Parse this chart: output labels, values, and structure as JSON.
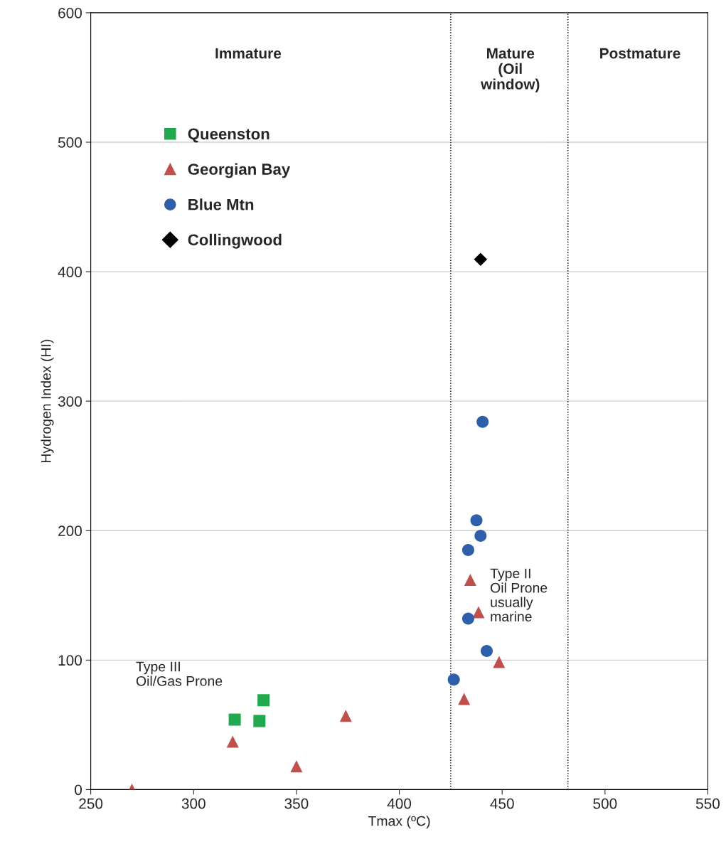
{
  "chart_data": {
    "type": "scatter",
    "xlabel": "Tmax (ºC)",
    "ylabel": "Hydrogen Index (HI)",
    "xlim": [
      250,
      550
    ],
    "ylim": [
      0,
      600
    ],
    "xticks": [
      250,
      300,
      350,
      400,
      450,
      500,
      550
    ],
    "yticks": [
      0,
      100,
      200,
      300,
      400,
      500,
      600
    ],
    "grid": "y",
    "legend": "top left",
    "series": [
      {
        "name": "Queenston",
        "color": "#22a84f",
        "marker": "square",
        "x": [
          320,
          332,
          334
        ],
        "values": [
          54,
          53,
          69
        ]
      },
      {
        "name": "Georgian Bay",
        "color": "#c0504d",
        "marker": "triangle",
        "x": [
          270,
          319,
          350,
          374,
          431.5,
          434.5,
          438.5,
          448.5
        ],
        "values": [
          0,
          37,
          18,
          57,
          70,
          162,
          137,
          98.5
        ]
      },
      {
        "name": "Blue Mtn",
        "color": "#2f5fa8",
        "marker": "circle",
        "x": [
          440.5,
          437.5,
          439.5,
          433.5,
          433.5,
          442.5,
          426.5
        ],
        "values": [
          284,
          208,
          196,
          185,
          132,
          107,
          85
        ]
      },
      {
        "name": "Collingwood",
        "color": "#000000",
        "marker": "diamond",
        "x": [
          439.5
        ],
        "values": [
          409.5
        ]
      }
    ],
    "ref_lines": [
      {
        "axis": "x",
        "value": 425,
        "color": "#000000",
        "line_style": "dotted"
      },
      {
        "axis": "x",
        "value": 482,
        "color": "#000000",
        "line_style": "dotted"
      }
    ],
    "annotations": [
      "Immature",
      "Mature\n(Oil\nwindow)",
      "Postmature",
      "Type III\nOil/Gas Prone",
      "Type II\nOil Prone\nusually\nmarine"
    ]
  }
}
